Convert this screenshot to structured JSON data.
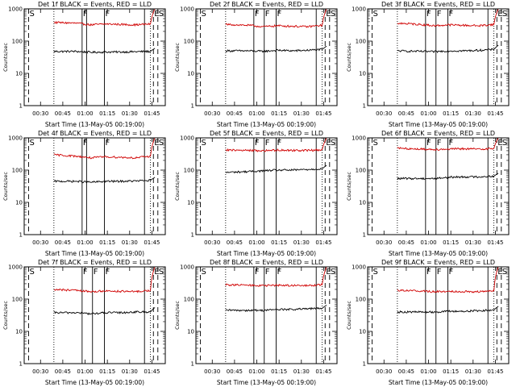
{
  "figure": {
    "background": "#ffffff",
    "axis_color": "#000000",
    "events_color": "#000000",
    "lld_color": "#d00000"
  },
  "chart_data": [
    {
      "type": "line",
      "title": "Det 1f BLACK = Events, RED = LLD",
      "xlabel": "Start Time (13-May-05 00:19:00)",
      "ylabel": "Counts/sec",
      "yscale": "log",
      "ylim": [
        1,
        1000
      ],
      "ytick_labels": [
        "1",
        "10",
        "100",
        "1000"
      ],
      "xtick_labels": [
        "00:30",
        "00:45",
        "01:00",
        "01:15",
        "01:30",
        "01:45"
      ],
      "xlim_minutes": [
        0,
        95
      ],
      "x": [
        20,
        35,
        45,
        55,
        65,
        75,
        85,
        88
      ],
      "series": [
        {
          "name": "BLACK = Events",
          "values": [
            48,
            48,
            45,
            46,
            46,
            47,
            48,
            60
          ]
        },
        {
          "name": "RED = LLD",
          "values": [
            380,
            360,
            320,
            340,
            330,
            320,
            340,
            1000
          ]
        }
      ],
      "markers": [
        {
          "label": "S",
          "minute": 3,
          "style": "dashed"
        },
        {
          "label": "",
          "minute": 20,
          "style": "dotted"
        },
        {
          "label": "F",
          "minute": 39,
          "style": "solid"
        },
        {
          "label": "",
          "minute": 42,
          "style": "solid"
        },
        {
          "label": "F",
          "minute": 54,
          "style": "solid"
        },
        {
          "label": "",
          "minute": 81,
          "style": "solid"
        },
        {
          "label": "",
          "minute": 85,
          "style": "dotted"
        },
        {
          "label": "E",
          "minute": 87,
          "style": "dashed"
        },
        {
          "label": "S",
          "minute": 90,
          "style": "dashed"
        }
      ]
    },
    {
      "type": "line",
      "title": "Det 2f BLACK = Events, RED = LLD",
      "xlabel": "Start Time (13-May-05 00:19:00)",
      "ylabel": "Counts/sec",
      "yscale": "log",
      "ylim": [
        1,
        1000
      ],
      "ytick_labels": [
        "1",
        "10",
        "100",
        "1000"
      ],
      "xtick_labels": [
        "00:30",
        "00:45",
        "01:00",
        "01:15",
        "01:30",
        "01:45"
      ],
      "xlim_minutes": [
        0,
        95
      ],
      "x": [
        20,
        35,
        45,
        55,
        65,
        75,
        85,
        88
      ],
      "series": [
        {
          "name": "BLACK = Events",
          "values": [
            50,
            50,
            48,
            52,
            50,
            52,
            55,
            70
          ]
        },
        {
          "name": "RED = LLD",
          "values": [
            330,
            310,
            280,
            300,
            290,
            280,
            310,
            1000
          ]
        }
      ],
      "markers": [
        {
          "label": "S",
          "minute": 3,
          "style": "dashed"
        },
        {
          "label": "",
          "minute": 20,
          "style": "dotted"
        },
        {
          "label": "F",
          "minute": 39,
          "style": "solid"
        },
        {
          "label": "F",
          "minute": 46,
          "style": "solid"
        },
        {
          "label": "F",
          "minute": 54,
          "style": "solid"
        },
        {
          "label": "",
          "minute": 81,
          "style": "solid"
        },
        {
          "label": "",
          "minute": 85,
          "style": "dotted"
        },
        {
          "label": "E",
          "minute": 87,
          "style": "dashed"
        },
        {
          "label": "S",
          "minute": 90,
          "style": "dashed"
        }
      ]
    },
    {
      "type": "line",
      "title": "Det 3f BLACK = Events, RED = LLD",
      "xlabel": "Start Time (13-May-05 00:19:00)",
      "ylabel": "Counts/sec",
      "yscale": "log",
      "ylim": [
        1,
        1000
      ],
      "ytick_labels": [
        "1",
        "10",
        "100",
        "1000"
      ],
      "xtick_labels": [
        "00:30",
        "00:45",
        "01:00",
        "01:15",
        "01:30",
        "01:45"
      ],
      "xlim_minutes": [
        0,
        95
      ],
      "x": [
        20,
        35,
        45,
        55,
        65,
        75,
        85,
        88
      ],
      "series": [
        {
          "name": "BLACK = Events",
          "values": [
            50,
            48,
            47,
            50,
            50,
            52,
            55,
            75
          ]
        },
        {
          "name": "RED = LLD",
          "values": [
            360,
            330,
            300,
            320,
            310,
            300,
            330,
            1000
          ]
        }
      ],
      "markers": [
        {
          "label": "S",
          "minute": 3,
          "style": "dashed"
        },
        {
          "label": "",
          "minute": 20,
          "style": "dotted"
        },
        {
          "label": "F",
          "minute": 39,
          "style": "solid"
        },
        {
          "label": "F",
          "minute": 46,
          "style": "solid"
        },
        {
          "label": "F",
          "minute": 54,
          "style": "solid"
        },
        {
          "label": "",
          "minute": 81,
          "style": "solid"
        },
        {
          "label": "",
          "minute": 85,
          "style": "dotted"
        },
        {
          "label": "E",
          "minute": 87,
          "style": "dashed"
        },
        {
          "label": "S",
          "minute": 90,
          "style": "dashed"
        }
      ]
    },
    {
      "type": "line",
      "title": "Det 4f BLACK = Events, RED = LLD",
      "xlabel": "Start Time (13-May-05 00:19:00)",
      "ylabel": "Counts/sec",
      "yscale": "log",
      "ylim": [
        1,
        1000
      ],
      "ytick_labels": [
        "1",
        "10",
        "100",
        "1000"
      ],
      "xtick_labels": [
        "00:30",
        "00:45",
        "01:00",
        "01:15",
        "01:30",
        "01:45"
      ],
      "xlim_minutes": [
        0,
        95
      ],
      "x": [
        20,
        35,
        45,
        55,
        65,
        75,
        85,
        88
      ],
      "series": [
        {
          "name": "BLACK = Events",
          "values": [
            45,
            45,
            42,
            45,
            45,
            46,
            48,
            60
          ]
        },
        {
          "name": "RED = LLD",
          "values": [
            300,
            270,
            240,
            260,
            250,
            240,
            270,
            1000
          ]
        }
      ],
      "markers": [
        {
          "label": "S",
          "minute": 3,
          "style": "dashed"
        },
        {
          "label": "",
          "minute": 20,
          "style": "dotted"
        },
        {
          "label": "F",
          "minute": 39,
          "style": "solid"
        },
        {
          "label": "",
          "minute": 42,
          "style": "solid"
        },
        {
          "label": "F",
          "minute": 54,
          "style": "solid"
        },
        {
          "label": "",
          "minute": 81,
          "style": "solid"
        },
        {
          "label": "",
          "minute": 85,
          "style": "dotted"
        },
        {
          "label": "E",
          "minute": 87,
          "style": "dashed"
        },
        {
          "label": "S",
          "minute": 90,
          "style": "dashed"
        }
      ]
    },
    {
      "type": "line",
      "title": "Det 5f BLACK = Events, RED = LLD",
      "xlabel": "Start Time (13-May-05 00:19:00)",
      "ylabel": "Counts/sec",
      "yscale": "log",
      "ylim": [
        1,
        1000
      ],
      "ytick_labels": [
        "1",
        "10",
        "100",
        "1000"
      ],
      "xtick_labels": [
        "00:30",
        "00:45",
        "01:00",
        "01:15",
        "01:30",
        "01:45"
      ],
      "xlim_minutes": [
        0,
        95
      ],
      "x": [
        20,
        35,
        45,
        55,
        65,
        75,
        85,
        88
      ],
      "series": [
        {
          "name": "BLACK = Events",
          "values": [
            85,
            90,
            95,
            100,
            100,
            105,
            110,
            140
          ]
        },
        {
          "name": "RED = LLD",
          "values": [
            420,
            410,
            400,
            420,
            410,
            410,
            430,
            1000
          ]
        }
      ],
      "markers": [
        {
          "label": "S",
          "minute": 3,
          "style": "dashed"
        },
        {
          "label": "",
          "minute": 20,
          "style": "dotted"
        },
        {
          "label": "F",
          "minute": 39,
          "style": "solid"
        },
        {
          "label": "F",
          "minute": 46,
          "style": "solid"
        },
        {
          "label": "F",
          "minute": 54,
          "style": "solid"
        },
        {
          "label": "",
          "minute": 81,
          "style": "solid"
        },
        {
          "label": "",
          "minute": 85,
          "style": "dotted"
        },
        {
          "label": "E",
          "minute": 87,
          "style": "dashed"
        },
        {
          "label": "S",
          "minute": 90,
          "style": "dashed"
        }
      ]
    },
    {
      "type": "line",
      "title": "Det 6f BLACK = Events, RED = LLD",
      "xlabel": "Start Time (13-May-05 00:19:00)",
      "ylabel": "Counts/sec",
      "yscale": "log",
      "ylim": [
        1,
        1000
      ],
      "ytick_labels": [
        "1",
        "10",
        "100",
        "1000"
      ],
      "xtick_labels": [
        "00:30",
        "00:45",
        "01:00",
        "01:15",
        "01:30",
        "01:45"
      ],
      "xlim_minutes": [
        0,
        95
      ],
      "x": [
        20,
        35,
        45,
        55,
        65,
        75,
        85,
        88
      ],
      "series": [
        {
          "name": "BLACK = Events",
          "values": [
            55,
            55,
            55,
            60,
            62,
            62,
            65,
            80
          ]
        },
        {
          "name": "RED = LLD",
          "values": [
            480,
            450,
            440,
            450,
            460,
            450,
            470,
            1000
          ]
        }
      ],
      "markers": [
        {
          "label": "S",
          "minute": 3,
          "style": "dashed"
        },
        {
          "label": "",
          "minute": 20,
          "style": "dotted"
        },
        {
          "label": "F",
          "minute": 39,
          "style": "solid"
        },
        {
          "label": "F",
          "minute": 46,
          "style": "solid"
        },
        {
          "label": "F",
          "minute": 54,
          "style": "solid"
        },
        {
          "label": "",
          "minute": 81,
          "style": "solid"
        },
        {
          "label": "",
          "minute": 85,
          "style": "dotted"
        },
        {
          "label": "E",
          "minute": 87,
          "style": "dashed"
        },
        {
          "label": "S",
          "minute": 90,
          "style": "dashed"
        }
      ]
    },
    {
      "type": "line",
      "title": "Det 7f BLACK = Events, RED = LLD",
      "xlabel": "Start Time (13-May-05 00:19:00)",
      "ylabel": "Counts/sec",
      "yscale": "log",
      "ylim": [
        1,
        1000
      ],
      "ytick_labels": [
        "1",
        "10",
        "100",
        "1000"
      ],
      "xtick_labels": [
        "00:30",
        "00:45",
        "01:00",
        "01:15",
        "01:30",
        "01:45"
      ],
      "xlim_minutes": [
        0,
        95
      ],
      "x": [
        20,
        35,
        45,
        55,
        65,
        75,
        85,
        88
      ],
      "series": [
        {
          "name": "BLACK = Events",
          "values": [
            38,
            38,
            35,
            38,
            38,
            40,
            40,
            55
          ]
        },
        {
          "name": "RED = LLD",
          "values": [
            200,
            185,
            170,
            180,
            175,
            170,
            185,
            1000
          ]
        }
      ],
      "markers": [
        {
          "label": "S",
          "minute": 3,
          "style": "dashed"
        },
        {
          "label": "",
          "minute": 20,
          "style": "dotted"
        },
        {
          "label": "F",
          "minute": 39,
          "style": "solid"
        },
        {
          "label": "F",
          "minute": 46,
          "style": "solid"
        },
        {
          "label": "F",
          "minute": 54,
          "style": "solid"
        },
        {
          "label": "",
          "minute": 81,
          "style": "solid"
        },
        {
          "label": "",
          "minute": 85,
          "style": "dotted"
        },
        {
          "label": "E",
          "minute": 87,
          "style": "dashed"
        },
        {
          "label": "S",
          "minute": 90,
          "style": "dashed"
        }
      ]
    },
    {
      "type": "line",
      "title": "Det 8f BLACK = Events, RED = LLD",
      "xlabel": "Start Time (13-May-05 00:19:00)",
      "ylabel": "Counts/sec",
      "yscale": "log",
      "ylim": [
        1,
        1000
      ],
      "ytick_labels": [
        "1",
        "10",
        "100",
        "1000"
      ],
      "xtick_labels": [
        "00:30",
        "00:45",
        "01:00",
        "01:15",
        "01:30",
        "01:45"
      ],
      "xlim_minutes": [
        0,
        95
      ],
      "x": [
        20,
        35,
        45,
        55,
        65,
        75,
        85,
        88
      ],
      "series": [
        {
          "name": "BLACK = Events",
          "values": [
            45,
            45,
            45,
            48,
            48,
            50,
            52,
            65
          ]
        },
        {
          "name": "RED = LLD",
          "values": [
            280,
            270,
            260,
            270,
            265,
            260,
            280,
            1000
          ]
        }
      ],
      "markers": [
        {
          "label": "S",
          "minute": 3,
          "style": "dashed"
        },
        {
          "label": "",
          "minute": 20,
          "style": "dotted"
        },
        {
          "label": "F",
          "minute": 39,
          "style": "solid"
        },
        {
          "label": "F",
          "minute": 46,
          "style": "solid"
        },
        {
          "label": "F",
          "minute": 54,
          "style": "solid"
        },
        {
          "label": "",
          "minute": 81,
          "style": "solid"
        },
        {
          "label": "",
          "minute": 85,
          "style": "dotted"
        },
        {
          "label": "E",
          "minute": 87,
          "style": "dashed"
        },
        {
          "label": "S",
          "minute": 90,
          "style": "dashed"
        }
      ]
    },
    {
      "type": "line",
      "title": "Det 9f BLACK = Events, RED = LLD",
      "xlabel": "Start Time (13-May-05 00:19:00)",
      "ylabel": "Counts/sec",
      "yscale": "log",
      "ylim": [
        1,
        1000
      ],
      "ytick_labels": [
        "1",
        "10",
        "100",
        "1000"
      ],
      "xtick_labels": [
        "00:30",
        "00:45",
        "01:00",
        "01:15",
        "01:30",
        "01:45"
      ],
      "xlim_minutes": [
        0,
        95
      ],
      "x": [
        20,
        35,
        45,
        55,
        65,
        75,
        85,
        88
      ],
      "series": [
        {
          "name": "BLACK = Events",
          "values": [
            40,
            40,
            40,
            42,
            42,
            44,
            46,
            60
          ]
        },
        {
          "name": "RED = LLD",
          "values": [
            190,
            180,
            170,
            175,
            172,
            170,
            180,
            1000
          ]
        }
      ],
      "markers": [
        {
          "label": "S",
          "minute": 3,
          "style": "dashed"
        },
        {
          "label": "",
          "minute": 20,
          "style": "dotted"
        },
        {
          "label": "F",
          "minute": 39,
          "style": "solid"
        },
        {
          "label": "F",
          "minute": 46,
          "style": "solid"
        },
        {
          "label": "F",
          "minute": 54,
          "style": "solid"
        },
        {
          "label": "",
          "minute": 81,
          "style": "solid"
        },
        {
          "label": "",
          "minute": 85,
          "style": "dotted"
        },
        {
          "label": "E",
          "minute": 87,
          "style": "dashed"
        },
        {
          "label": "S",
          "minute": 90,
          "style": "dashed"
        }
      ]
    }
  ]
}
